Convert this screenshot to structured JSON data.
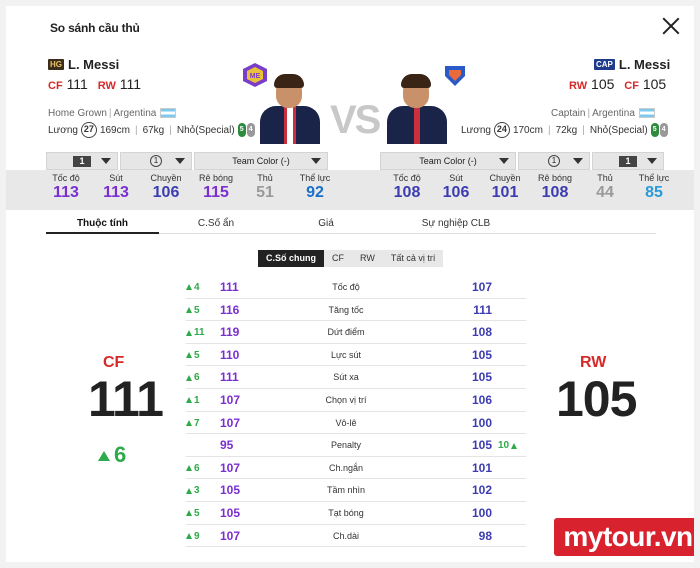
{
  "header": {
    "title": "So sánh cầu thủ"
  },
  "left": {
    "badge": "HG",
    "name": "L. Messi",
    "pos1": "CF",
    "val1": "111",
    "pos2": "RW",
    "val2": "111",
    "tag": "Home Grown",
    "nation": "Argentina",
    "wage_label": "Lương",
    "wage": "27",
    "height": "169cm",
    "weight": "67kg",
    "skill": "Nhỏ(Special)",
    "foot_l": "5",
    "foot_r": "4",
    "dd_level": "1",
    "dd_circle": "1",
    "dd_team": "Team Color (-)"
  },
  "right": {
    "badge": "CAP",
    "name": "L. Messi",
    "pos1": "RW",
    "val1": "105",
    "pos2": "CF",
    "val2": "105",
    "tag": "Captain",
    "nation": "Argentina",
    "wage_label": "Lương",
    "wage": "24",
    "height": "170cm",
    "weight": "72kg",
    "skill": "Nhỏ(Special)",
    "foot_l": "5",
    "foot_r": "4",
    "dd_team": "Team Color (-)",
    "dd_circle": "1",
    "dd_level": "1"
  },
  "vs": "VS",
  "summary_left": [
    {
      "label": "Tốc độ",
      "value": "113",
      "color": "#7a2fd0"
    },
    {
      "label": "Sút",
      "value": "113",
      "color": "#7a2fd0"
    },
    {
      "label": "Chuyền",
      "value": "106",
      "color": "#3c3cb0"
    },
    {
      "label": "Rê bóng",
      "value": "115",
      "color": "#7a2fd0"
    },
    {
      "label": "Thủ",
      "value": "51",
      "color": "#9a9a9a"
    },
    {
      "label": "Thể lực",
      "value": "92",
      "color": "#1a6fc8"
    }
  ],
  "summary_right": [
    {
      "label": "Tốc độ",
      "value": "108",
      "color": "#3c3cb0"
    },
    {
      "label": "Sút",
      "value": "106",
      "color": "#3c3cb0"
    },
    {
      "label": "Chuyền",
      "value": "101",
      "color": "#3c3cb0"
    },
    {
      "label": "Rê bóng",
      "value": "108",
      "color": "#3c3cb0"
    },
    {
      "label": "Thủ",
      "value": "44",
      "color": "#9a9a9a"
    },
    {
      "label": "Thể lực",
      "value": "85",
      "color": "#2a9ad8"
    }
  ],
  "tabs": [
    "Thuộc tính",
    "C.Số ẩn",
    "Giá",
    "Sự nghiệp CLB"
  ],
  "subtabs": [
    "C.Số chung",
    "CF",
    "RW",
    "Tất cả vị trí"
  ],
  "big_left": {
    "pos": "CF",
    "value": "111",
    "diff": "6"
  },
  "big_right": {
    "pos": "RW",
    "value": "105"
  },
  "stats": [
    {
      "left_diff": "4",
      "left": "111",
      "name": "Tốc độ",
      "right": "107",
      "right_diff": ""
    },
    {
      "left_diff": "5",
      "left": "116",
      "name": "Tăng tốc",
      "right": "111",
      "right_diff": ""
    },
    {
      "left_diff": "11",
      "left": "119",
      "name": "Dứt điểm",
      "right": "108",
      "right_diff": ""
    },
    {
      "left_diff": "5",
      "left": "110",
      "name": "Lực sút",
      "right": "105",
      "right_diff": ""
    },
    {
      "left_diff": "6",
      "left": "111",
      "name": "Sút xa",
      "right": "105",
      "right_diff": ""
    },
    {
      "left_diff": "1",
      "left": "107",
      "name": "Chọn vị trí",
      "right": "106",
      "right_diff": ""
    },
    {
      "left_diff": "7",
      "left": "107",
      "name": "Vô-lê",
      "right": "100",
      "right_diff": ""
    },
    {
      "left_diff": "",
      "left": "95",
      "name": "Penalty",
      "right": "105",
      "right_diff": "10"
    },
    {
      "left_diff": "6",
      "left": "107",
      "name": "Ch.ngắn",
      "right": "101",
      "right_diff": ""
    },
    {
      "left_diff": "3",
      "left": "105",
      "name": "Tầm nhìn",
      "right": "102",
      "right_diff": ""
    },
    {
      "left_diff": "5",
      "left": "105",
      "name": "Tạt bóng",
      "right": "100",
      "right_diff": ""
    },
    {
      "left_diff": "9",
      "left": "107",
      "name": "Ch.dài",
      "right": "98",
      "right_diff": ""
    }
  ],
  "watermark": "mytour.vn"
}
